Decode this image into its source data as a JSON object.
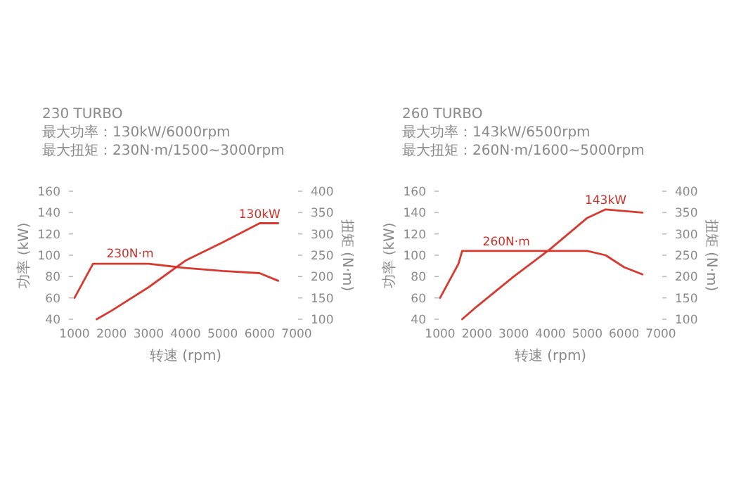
{
  "chart_data": [
    {
      "type": "line",
      "title": "230 TURBO",
      "subtitle": "最大功率：130kW/6000rpm",
      "xlabel": "转速 (rpm)",
      "ylabel": "功率 (kW)",
      "y2label": "扭矩 (N·m)",
      "xlim": [
        1000,
        7000
      ],
      "xticks": [
        1000,
        2000,
        3000,
        4000,
        5000,
        6000,
        7000
      ],
      "ylim": [
        40,
        160
      ],
      "yticks": [
        40,
        60,
        80,
        100,
        120,
        140,
        160
      ],
      "y2lim": [
        100,
        400
      ],
      "y2ticks": [
        100,
        150,
        200,
        250,
        300,
        350,
        400
      ],
      "series": [
        {
          "color": "#d8392f",
          "x": [
            1600,
            2000,
            3000,
            4000,
            5000,
            6000,
            6500
          ],
          "values": [
            40,
            48,
            70,
            95,
            112,
            130,
            130
          ]
        },
        {
          "color": "#d8392f",
          "axis": "y2",
          "x": [
            1000,
            1500,
            3000,
            4000,
            5000,
            6000,
            6500
          ],
          "values": [
            150,
            230,
            230,
            220,
            213,
            208,
            190
          ]
        }
      ],
      "annotations": [
        "最大扭矩：230N·m/1500~3000rpm",
        {
          "text": "130kW",
          "x": 6000,
          "y": 130
        },
        {
          "text": "230N·m",
          "x": 2500,
          "y": 93
        }
      ]
    },
    {
      "type": "line",
      "title": "260 TURBO",
      "subtitle": "最大功率：143kW/6500rpm",
      "xlabel": "转速 (rpm)",
      "ylabel": "功率 (kW)",
      "y2label": "扭矩 (N·m)",
      "xlim": [
        1000,
        7000
      ],
      "xticks": [
        1000,
        2000,
        3000,
        4000,
        5000,
        6000,
        7000
      ],
      "ylim": [
        40,
        160
      ],
      "yticks": [
        40,
        60,
        80,
        100,
        120,
        140,
        160
      ],
      "y2lim": [
        100,
        400
      ],
      "y2ticks": [
        100,
        150,
        200,
        250,
        300,
        350,
        400
      ],
      "series": [
        {
          "color": "#d8392f",
          "x": [
            1600,
            2000,
            3000,
            4000,
            5000,
            5500,
            6500
          ],
          "values": [
            40,
            52,
            80,
            106,
            135,
            143,
            140
          ]
        },
        {
          "color": "#d8392f",
          "axis": "y2",
          "x": [
            1000,
            1500,
            1600,
            5000,
            5500,
            6000,
            6500
          ],
          "values": [
            150,
            230,
            260,
            260,
            250,
            222,
            205
          ]
        }
      ],
      "annotations": [
        "最大扭矩：260N·m/1600~5000rpm",
        {
          "text": "143kW",
          "x": 5500,
          "y": 143
        },
        {
          "text": "260N·m",
          "x": 2800,
          "y": 104
        }
      ]
    }
  ]
}
